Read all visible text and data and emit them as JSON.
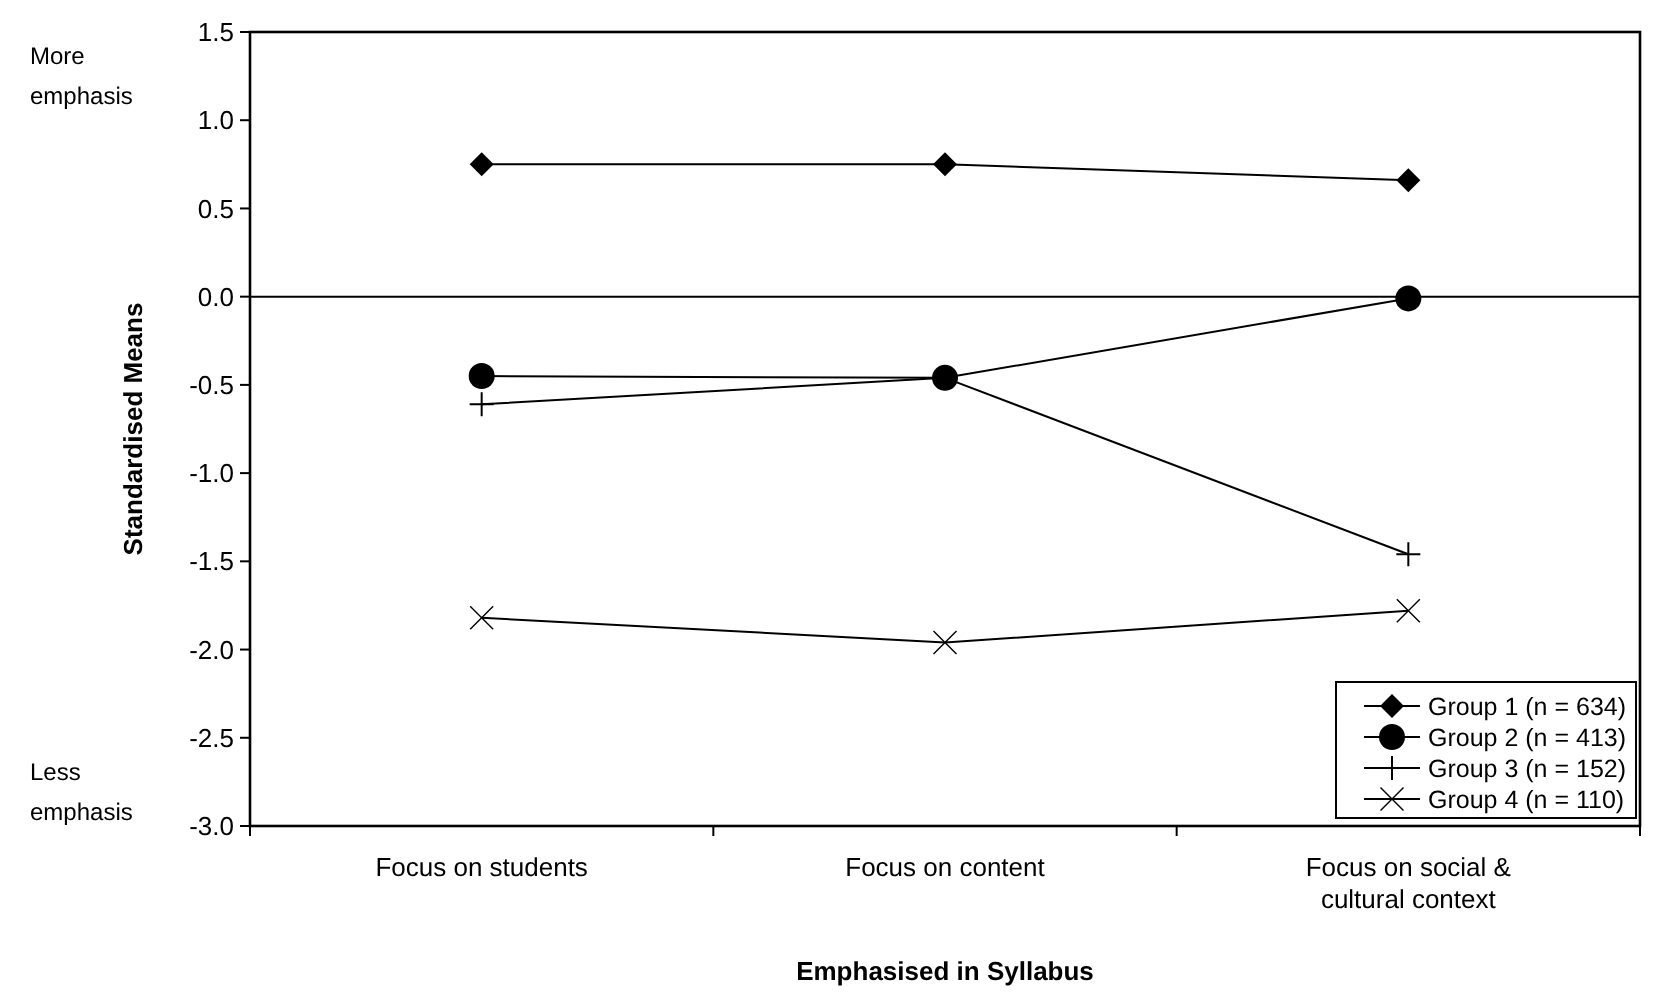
{
  "chart_data": {
    "type": "line",
    "xlabel": "Emphasised in Syllabus",
    "ylabel": "Standardised Means",
    "categories": [
      "Focus on students",
      "Focus on content",
      "Focus on social & cultural context"
    ],
    "series": [
      {
        "name": "Group 1 (n = 634)",
        "color": "#000000",
        "marker": "diamond",
        "values": [
          0.75,
          0.75,
          0.66
        ]
      },
      {
        "name": "Group 2 (n = 413)",
        "color": "#000000",
        "marker": "circle",
        "values": [
          -0.45,
          -0.46,
          -0.01
        ]
      },
      {
        "name": "Group 3 (n = 152)",
        "color": "#000000",
        "marker": "cross",
        "values": [
          -0.61,
          -0.46,
          -1.46
        ]
      },
      {
        "name": "Group 4 (n = 110)",
        "color": "#000000",
        "marker": "x",
        "values": [
          -1.82,
          -1.96,
          -1.78
        ]
      }
    ],
    "ylim": [
      -3.0,
      1.5
    ],
    "yticks": [
      {
        "value": 1.5,
        "label": "1.5"
      },
      {
        "value": 1,
        "label": "1.0"
      },
      {
        "value": 0.5,
        "label": "0.5"
      },
      {
        "value": 0,
        "label": "0.0"
      },
      {
        "value": -0.5,
        "label": "-0.5"
      },
      {
        "value": -1,
        "label": "-1.0"
      },
      {
        "value": -1.5,
        "label": "-1.5"
      },
      {
        "value": -2,
        "label": "-2.0"
      },
      {
        "value": -2.5,
        "label": "-2.5"
      },
      {
        "value": -3,
        "label": "-3.0"
      }
    ],
    "ref_lines": [
      {
        "axis": "y",
        "value": 0,
        "color": "#000000"
      }
    ],
    "annotations": [
      "More emphasis",
      "Less emphasis"
    ],
    "legend": "bottom right",
    "grid": false,
    "line_style": "solid"
  }
}
